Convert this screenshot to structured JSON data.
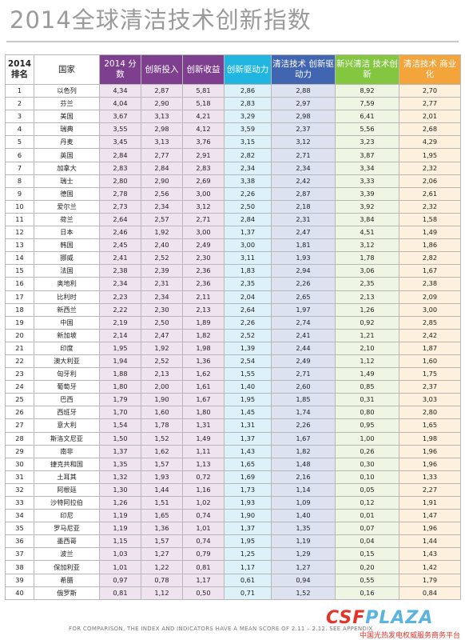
{
  "title": "2014全球清洁技术创新指数",
  "headers": {
    "rank": "2014 排名",
    "country": "国家",
    "score": "2014 分数",
    "invest": "创新投入",
    "gain": "创新收益",
    "driver": "创新驱动力",
    "clean_driver": "清洁技术 创新驱动力",
    "emerging": "新兴清洁 技术创新",
    "commercial": "清洁技术 商业化"
  },
  "rows": [
    [
      "1",
      "以色列",
      "4,34",
      "2,87",
      "5,81",
      "2,86",
      "2,88",
      "8,92",
      "2,70"
    ],
    [
      "2",
      "芬兰",
      "4,04",
      "2,90",
      "5,18",
      "2,83",
      "2,97",
      "7,59",
      "2,77"
    ],
    [
      "3",
      "美国",
      "3,67",
      "3,13",
      "4,21",
      "3,29",
      "2,98",
      "6,41",
      "2,01"
    ],
    [
      "4",
      "瑞典",
      "3,55",
      "2,98",
      "4,12",
      "3,59",
      "2,37",
      "5,56",
      "2,68"
    ],
    [
      "5",
      "丹麦",
      "3,45",
      "3,13",
      "3,76",
      "3,15",
      "3,12",
      "3,23",
      "4,29"
    ],
    [
      "6",
      "英国",
      "2,84",
      "2,77",
      "2,91",
      "2,82",
      "2,71",
      "3,87",
      "1,95"
    ],
    [
      "7",
      "加拿大",
      "2,83",
      "2,84",
      "2,83",
      "2,34",
      "2,34",
      "3,34",
      "2,32"
    ],
    [
      "8",
      "瑞士",
      "2,80",
      "2,90",
      "2,69",
      "3,38",
      "2,42",
      "3,33",
      "2,06"
    ],
    [
      "9",
      "德国",
      "2,78",
      "2,56",
      "3,00",
      "2,26",
      "2,87",
      "3,39",
      "2,61"
    ],
    [
      "10",
      "爱尔兰",
      "2,73",
      "2,34",
      "3,12",
      "2,50",
      "2,18",
      "3,92",
      "2,32"
    ],
    [
      "11",
      "荷兰",
      "2,64",
      "2,57",
      "2,71",
      "2,84",
      "2,31",
      "3,84",
      "1,58"
    ],
    [
      "12",
      "日本",
      "2,46",
      "1,92",
      "3,00",
      "1,37",
      "2,47",
      "4,51",
      "1,49"
    ],
    [
      "13",
      "韩国",
      "2,45",
      "2,40",
      "2,49",
      "3,00",
      "1,81",
      "3,12",
      "1,86"
    ],
    [
      "14",
      "挪威",
      "2,41",
      "2,52",
      "2,30",
      "3,11",
      "1,93",
      "1,78",
      "2,82"
    ],
    [
      "15",
      "法国",
      "2,38",
      "2,39",
      "2,36",
      "1,83",
      "2,94",
      "3,06",
      "1,67"
    ],
    [
      "16",
      "奥地利",
      "2,34",
      "2,31",
      "2,36",
      "2,35",
      "2,26",
      "2,35",
      "2,38"
    ],
    [
      "17",
      "比利时",
      "2,23",
      "2,34",
      "2,11",
      "2,04",
      "2,65",
      "2,13",
      "2,09"
    ],
    [
      "18",
      "新西兰",
      "2,22",
      "2,30",
      "2,13",
      "2,64",
      "1,97",
      "1,26",
      "3,00"
    ],
    [
      "19",
      "中国",
      "2,19",
      "2,50",
      "1,89",
      "2,26",
      "2,74",
      "0,92",
      "2,85"
    ],
    [
      "20",
      "新加坡",
      "2,14",
      "2,47",
      "1,82",
      "2,52",
      "2,41",
      "1,21",
      "2,42"
    ],
    [
      "21",
      "印度",
      "1,95",
      "1,92",
      "1,98",
      "1,39",
      "2,44",
      "2,10",
      "1,87"
    ],
    [
      "22",
      "澳大利亚",
      "1,94",
      "2,52",
      "1,36",
      "2,54",
      "2,49",
      "1,12",
      "1,60"
    ],
    [
      "23",
      "匈牙利",
      "1,88",
      "2,13",
      "1,62",
      "1,55",
      "2,71",
      "1,49",
      "1,75"
    ],
    [
      "24",
      "葡萄牙",
      "1,80",
      "2,00",
      "1,61",
      "1,40",
      "2,60",
      "0,85",
      "2,37"
    ],
    [
      "25",
      "巴西",
      "1,79",
      "1,90",
      "1,67",
      "1,95",
      "1,85",
      "0,31",
      "3,03"
    ],
    [
      "26",
      "西班牙",
      "1,70",
      "1,60",
      "1,80",
      "1,45",
      "1,74",
      "0,80",
      "2,80"
    ],
    [
      "27",
      "意大利",
      "1,54",
      "1,78",
      "1,31",
      "1,31",
      "2,26",
      "0,95",
      "1,65"
    ],
    [
      "28",
      "斯洛文尼亚",
      "1,50",
      "1,52",
      "1,49",
      "1,37",
      "1,67",
      "1,00",
      "1,98"
    ],
    [
      "29",
      "南非",
      "1,37",
      "1,62",
      "1,11",
      "1,43",
      "1,82",
      "0,26",
      "1,96"
    ],
    [
      "30",
      "捷克共和国",
      "1,35",
      "1,57",
      "1,13",
      "1,65",
      "1,48",
      "0,30",
      "1,96"
    ],
    [
      "31",
      "土耳其",
      "1,32",
      "1,93",
      "0,72",
      "1,69",
      "2,16",
      "0,10",
      "1,33"
    ],
    [
      "32",
      "阿根廷",
      "1,30",
      "1,44",
      "1,16",
      "1,73",
      "1,14",
      "0,05",
      "2,27"
    ],
    [
      "33",
      "沙特阿拉伯",
      "1,26",
      "1,51",
      "1,02",
      "1,93",
      "1,09",
      "0,12",
      "1,91"
    ],
    [
      "34",
      "印尼",
      "1,19",
      "1,65",
      "0,74",
      "1,90",
      "1,40",
      "0,01",
      "1,47"
    ],
    [
      "35",
      "罗马尼亚",
      "1,19",
      "1,36",
      "1,01",
      "1,37",
      "1,35",
      "0,07",
      "1,96"
    ],
    [
      "36",
      "墨西哥",
      "1,15",
      "1,57",
      "0,74",
      "1,95",
      "1,19",
      "0,04",
      "1,44"
    ],
    [
      "37",
      "波兰",
      "1,03",
      "1,27",
      "0,79",
      "1,25",
      "1,29",
      "0,15",
      "1,43"
    ],
    [
      "38",
      "保加利亚",
      "1,01",
      "1,22",
      "0,81",
      "1,17",
      "1,27",
      "0,20",
      "1,42"
    ],
    [
      "39",
      "希腊",
      "0,97",
      "0,78",
      "1,17",
      "0,61",
      "0,94",
      "0,55",
      "1,79"
    ],
    [
      "40",
      "俄罗斯",
      "0,81",
      "1,12",
      "0,50",
      "0,71",
      "1,52",
      "0,16",
      "0,84"
    ]
  ],
  "footnote": "FOR COMPARISON, THE INDEX AND INDICATORS HAVE A MEAN SCORE OF 2.11 – 2.12. SEE APPENDIX",
  "watermark": {
    "logo_csf": "CSF",
    "logo_plaza": "PLAZA",
    "subtitle": "中国光热发电权威服务商务平台"
  },
  "colors": {
    "purple": "#7e3f8f",
    "cyan": "#21b6e2",
    "blue": "#4165b0",
    "green": "#83c63f",
    "orange": "#f3a43a"
  }
}
